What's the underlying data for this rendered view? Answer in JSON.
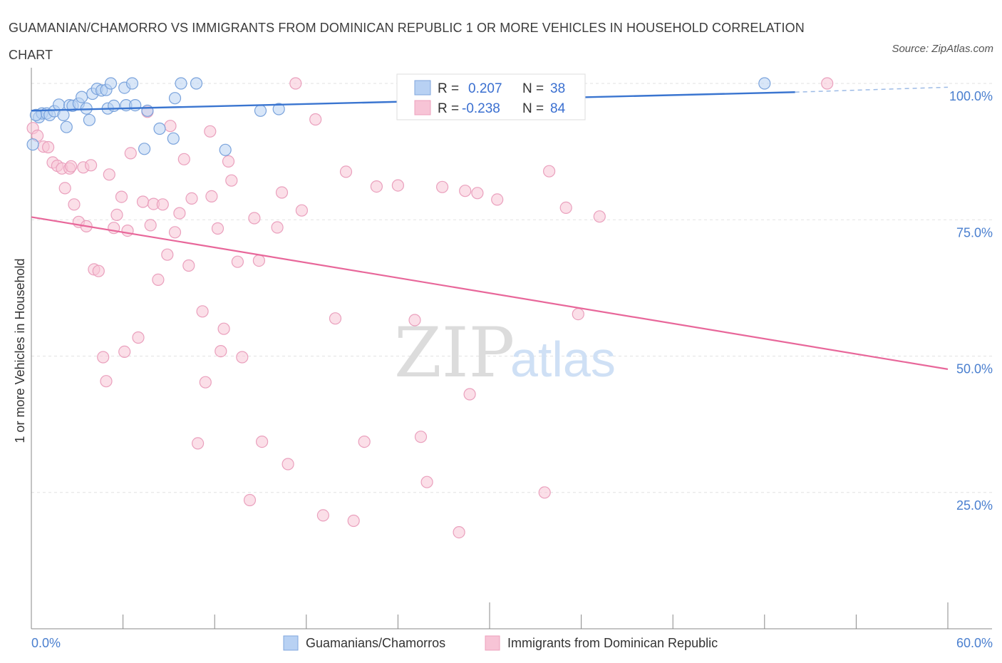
{
  "title": "GUAMANIAN/CHAMORRO VS IMMIGRANTS FROM DOMINICAN REPUBLIC 1 OR MORE VEHICLES IN HOUSEHOLD CORRELATION CHART",
  "source": "Source: ZipAtlas.com",
  "watermark": {
    "zip": "ZIP",
    "atlas": "atlas"
  },
  "colors": {
    "blue": "#3a75d0",
    "blue_fill": "#b8d1f3",
    "pink": "#e8679a",
    "pink_fill": "#f7c4d6",
    "axis_label": "#4a7fcf"
  },
  "legend_top": {
    "rows": [
      {
        "r_label": "R =",
        "r_value": "0.207",
        "n_label": "N =",
        "n_value": "38"
      },
      {
        "r_label": "R =",
        "r_value": "-0.238",
        "n_label": "N =",
        "n_value": "84"
      }
    ]
  },
  "chart_data": {
    "type": "scatter",
    "title": "GUAMANIAN/CHAMORRO VS IMMIGRANTS FROM DOMINICAN REPUBLIC 1 OR MORE VEHICLES IN HOUSEHOLD CORRELATION CHART",
    "xlabel": "",
    "ylabel": "1 or more Vehicles in Household",
    "xlim": [
      0,
      60
    ],
    "ylim": [
      0,
      105
    ],
    "x_tick_labels": {
      "min": "0.0%",
      "max": "60.0%"
    },
    "y_ticks": [
      {
        "value": 100,
        "label": "100.0%"
      },
      {
        "value": 75,
        "label": "75.0%"
      },
      {
        "value": 50,
        "label": "50.0%"
      },
      {
        "value": 25,
        "label": "25.0%"
      }
    ],
    "series": [
      {
        "name": "Guamanians/Chamorros",
        "r": 0.207,
        "n": 38,
        "trend": {
          "x0": 0,
          "y0": 95.0,
          "x1": 50,
          "y1": 98.4,
          "dash_to_x": 60,
          "dash_to_y": 99.3
        },
        "points": [
          [
            0.1,
            88.8
          ],
          [
            0.5,
            93.8
          ],
          [
            0.7,
            94.5
          ],
          [
            1.0,
            94.5
          ],
          [
            1.2,
            94.2
          ],
          [
            1.5,
            94.9
          ],
          [
            1.8,
            96.1
          ],
          [
            2.1,
            94.2
          ],
          [
            2.3,
            92.0
          ],
          [
            2.5,
            96.0
          ],
          [
            2.7,
            95.9
          ],
          [
            3.1,
            96.3
          ],
          [
            3.3,
            97.5
          ],
          [
            3.6,
            95.4
          ],
          [
            3.8,
            93.3
          ],
          [
            4.0,
            98.1
          ],
          [
            4.3,
            99.0
          ],
          [
            4.6,
            98.7
          ],
          [
            4.9,
            98.8
          ],
          [
            5.0,
            95.4
          ],
          [
            5.2,
            100.0
          ],
          [
            5.4,
            95.9
          ],
          [
            6.1,
            99.2
          ],
          [
            6.2,
            96.0
          ],
          [
            6.6,
            100.0
          ],
          [
            6.8,
            96.0
          ],
          [
            7.4,
            88.0
          ],
          [
            7.6,
            95.0
          ],
          [
            8.4,
            91.7
          ],
          [
            9.3,
            89.9
          ],
          [
            9.4,
            97.3
          ],
          [
            9.8,
            100.0
          ],
          [
            10.8,
            100.0
          ],
          [
            12.7,
            87.8
          ],
          [
            15.0,
            95.0
          ],
          [
            16.2,
            95.3
          ],
          [
            48.0,
            100.0
          ],
          [
            0.3,
            94.2
          ]
        ]
      },
      {
        "name": "Immigrants from Dominican Republic",
        "r": -0.238,
        "n": 84,
        "trend": {
          "x0": 0,
          "y0": 75.5,
          "x1": 60,
          "y1": 47.6
        },
        "points": [
          [
            0.1,
            91.8
          ],
          [
            0.4,
            90.4
          ],
          [
            0.8,
            88.4
          ],
          [
            1.1,
            88.3
          ],
          [
            1.4,
            85.5
          ],
          [
            1.7,
            84.9
          ],
          [
            2.0,
            84.4
          ],
          [
            2.2,
            80.8
          ],
          [
            2.5,
            84.4
          ],
          [
            2.8,
            77.8
          ],
          [
            3.1,
            74.6
          ],
          [
            3.4,
            84.6
          ],
          [
            3.6,
            73.8
          ],
          [
            3.9,
            85.0
          ],
          [
            4.1,
            65.9
          ],
          [
            4.4,
            65.6
          ],
          [
            4.7,
            49.8
          ],
          [
            4.9,
            45.4
          ],
          [
            5.1,
            83.3
          ],
          [
            5.4,
            73.5
          ],
          [
            5.6,
            75.9
          ],
          [
            5.9,
            79.2
          ],
          [
            6.1,
            50.8
          ],
          [
            6.3,
            73.0
          ],
          [
            6.5,
            87.2
          ],
          [
            7.0,
            53.4
          ],
          [
            7.3,
            78.3
          ],
          [
            7.6,
            94.8
          ],
          [
            7.8,
            74.0
          ],
          [
            8.0,
            77.9
          ],
          [
            8.3,
            64.0
          ],
          [
            8.6,
            77.8
          ],
          [
            8.9,
            68.6
          ],
          [
            9.1,
            92.2
          ],
          [
            9.4,
            72.7
          ],
          [
            9.7,
            76.2
          ],
          [
            10.0,
            86.1
          ],
          [
            10.3,
            66.6
          ],
          [
            10.5,
            78.9
          ],
          [
            10.9,
            34.0
          ],
          [
            11.2,
            58.2
          ],
          [
            11.4,
            45.2
          ],
          [
            11.7,
            91.2
          ],
          [
            11.8,
            79.3
          ],
          [
            12.2,
            73.4
          ],
          [
            12.4,
            50.9
          ],
          [
            12.6,
            55.0
          ],
          [
            12.9,
            85.7
          ],
          [
            13.1,
            82.2
          ],
          [
            13.5,
            67.3
          ],
          [
            13.8,
            49.8
          ],
          [
            14.3,
            23.6
          ],
          [
            14.6,
            75.3
          ],
          [
            14.9,
            67.5
          ],
          [
            15.1,
            34.3
          ],
          [
            16.1,
            73.6
          ],
          [
            16.4,
            80.0
          ],
          [
            16.8,
            30.2
          ],
          [
            17.3,
            100.0
          ],
          [
            17.7,
            76.7
          ],
          [
            18.6,
            93.4
          ],
          [
            19.1,
            20.8
          ],
          [
            19.9,
            56.9
          ],
          [
            20.6,
            83.8
          ],
          [
            21.1,
            19.8
          ],
          [
            21.8,
            34.3
          ],
          [
            22.6,
            81.1
          ],
          [
            24.0,
            81.3
          ],
          [
            25.1,
            56.6
          ],
          [
            25.5,
            35.2
          ],
          [
            25.9,
            26.9
          ],
          [
            26.9,
            81.0
          ],
          [
            28.0,
            17.7
          ],
          [
            28.4,
            80.3
          ],
          [
            28.7,
            43.0
          ],
          [
            29.2,
            79.9
          ],
          [
            30.5,
            78.7
          ],
          [
            33.6,
            25.0
          ],
          [
            33.9,
            83.9
          ],
          [
            35.0,
            77.2
          ],
          [
            35.8,
            57.7
          ],
          [
            37.2,
            75.6
          ],
          [
            52.1,
            100.0
          ],
          [
            2.6,
            84.8
          ]
        ]
      }
    ]
  }
}
